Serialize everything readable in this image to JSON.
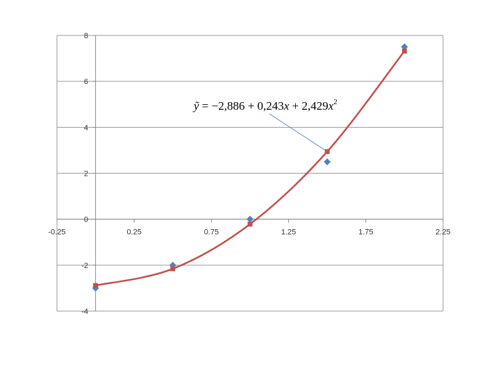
{
  "chart_data": {
    "type": "scatter",
    "xlim": [
      -0.25,
      2.25
    ],
    "ylim": [
      -4,
      8
    ],
    "x_ticks": [
      "-0.25",
      "0.25",
      "0.75",
      "1.25",
      "1.75",
      "2.25"
    ],
    "x_tick_values": [
      -0.25,
      0.25,
      0.75,
      1.25,
      1.75,
      2.25
    ],
    "y_ticks": [
      "-4",
      "-2",
      "0",
      "2",
      "4",
      "6",
      "8"
    ],
    "y_tick_values": [
      -4,
      -2,
      0,
      2,
      4,
      6,
      8
    ],
    "grid": "horizontal",
    "series": [
      {
        "marker": "diamond",
        "color": "#4f81bd",
        "x": [
          0,
          0.5,
          1,
          1.5,
          2
        ],
        "y": [
          -3,
          -2,
          0,
          2.5,
          7.5
        ]
      },
      {
        "marker": "square",
        "color": "#c0504d",
        "line": "smooth",
        "x": [
          0,
          0.5,
          1,
          1.5,
          2
        ],
        "y": [
          -2.886,
          -2.158,
          -0.214,
          2.944,
          7.316
        ]
      }
    ],
    "annotation": {
      "text_parts": {
        "lhs": "ỹ",
        "eq": " = −2,886 + 0,243",
        "x1": "x",
        "plus": " + 2,429",
        "x2": "x",
        "sup": "2"
      },
      "points_to": {
        "x": 1.5,
        "y": 2.944
      },
      "arrow_color": "#4f81bd"
    }
  }
}
